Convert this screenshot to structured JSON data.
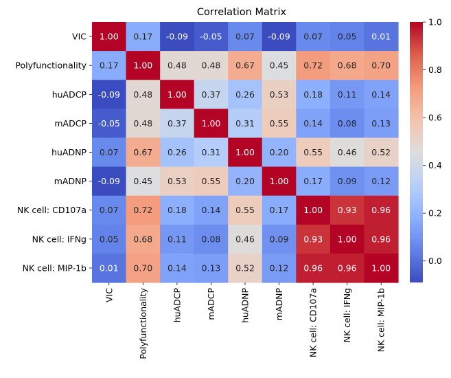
{
  "chart_data": {
    "type": "heatmap",
    "title": "Correlation Matrix",
    "labels": [
      "VIC",
      "Polyfunctionality",
      "huADCP",
      "mADCP",
      "huADNP",
      "mADNP",
      "NK cell: CD107a",
      "NK cell: IFNg",
      "NK cell: MIP-1b"
    ],
    "matrix": [
      [
        1.0,
        0.17,
        -0.09,
        -0.05,
        0.07,
        -0.09,
        0.07,
        0.05,
        0.01
      ],
      [
        0.17,
        1.0,
        0.48,
        0.48,
        0.67,
        0.45,
        0.72,
        0.68,
        0.7
      ],
      [
        -0.09,
        0.48,
        1.0,
        0.37,
        0.26,
        0.53,
        0.18,
        0.11,
        0.14
      ],
      [
        -0.05,
        0.48,
        0.37,
        1.0,
        0.31,
        0.55,
        0.14,
        0.08,
        0.13
      ],
      [
        0.07,
        0.67,
        0.26,
        0.31,
        1.0,
        0.2,
        0.55,
        0.46,
        0.52
      ],
      [
        -0.09,
        0.45,
        0.53,
        0.55,
        0.2,
        1.0,
        0.17,
        0.09,
        0.12
      ],
      [
        0.07,
        0.72,
        0.18,
        0.14,
        0.55,
        0.17,
        1.0,
        0.93,
        0.96
      ],
      [
        0.05,
        0.68,
        0.11,
        0.08,
        0.46,
        0.09,
        0.93,
        1.0,
        0.96
      ],
      [
        0.01,
        0.7,
        0.14,
        0.13,
        0.52,
        0.12,
        0.96,
        0.96,
        1.0
      ]
    ],
    "value_range": [
      -0.09,
      1.0
    ],
    "colormap": "coolwarm",
    "colorbar_ticks": [
      0.0,
      0.2,
      0.4,
      0.6,
      0.8,
      1.0
    ],
    "colorbar_tick_labels": [
      "0.0",
      "0.2",
      "0.4",
      "0.6",
      "0.8",
      "1.0"
    ],
    "annotation_format": "0.00",
    "grid": false,
    "legend": "colorbar-right"
  }
}
